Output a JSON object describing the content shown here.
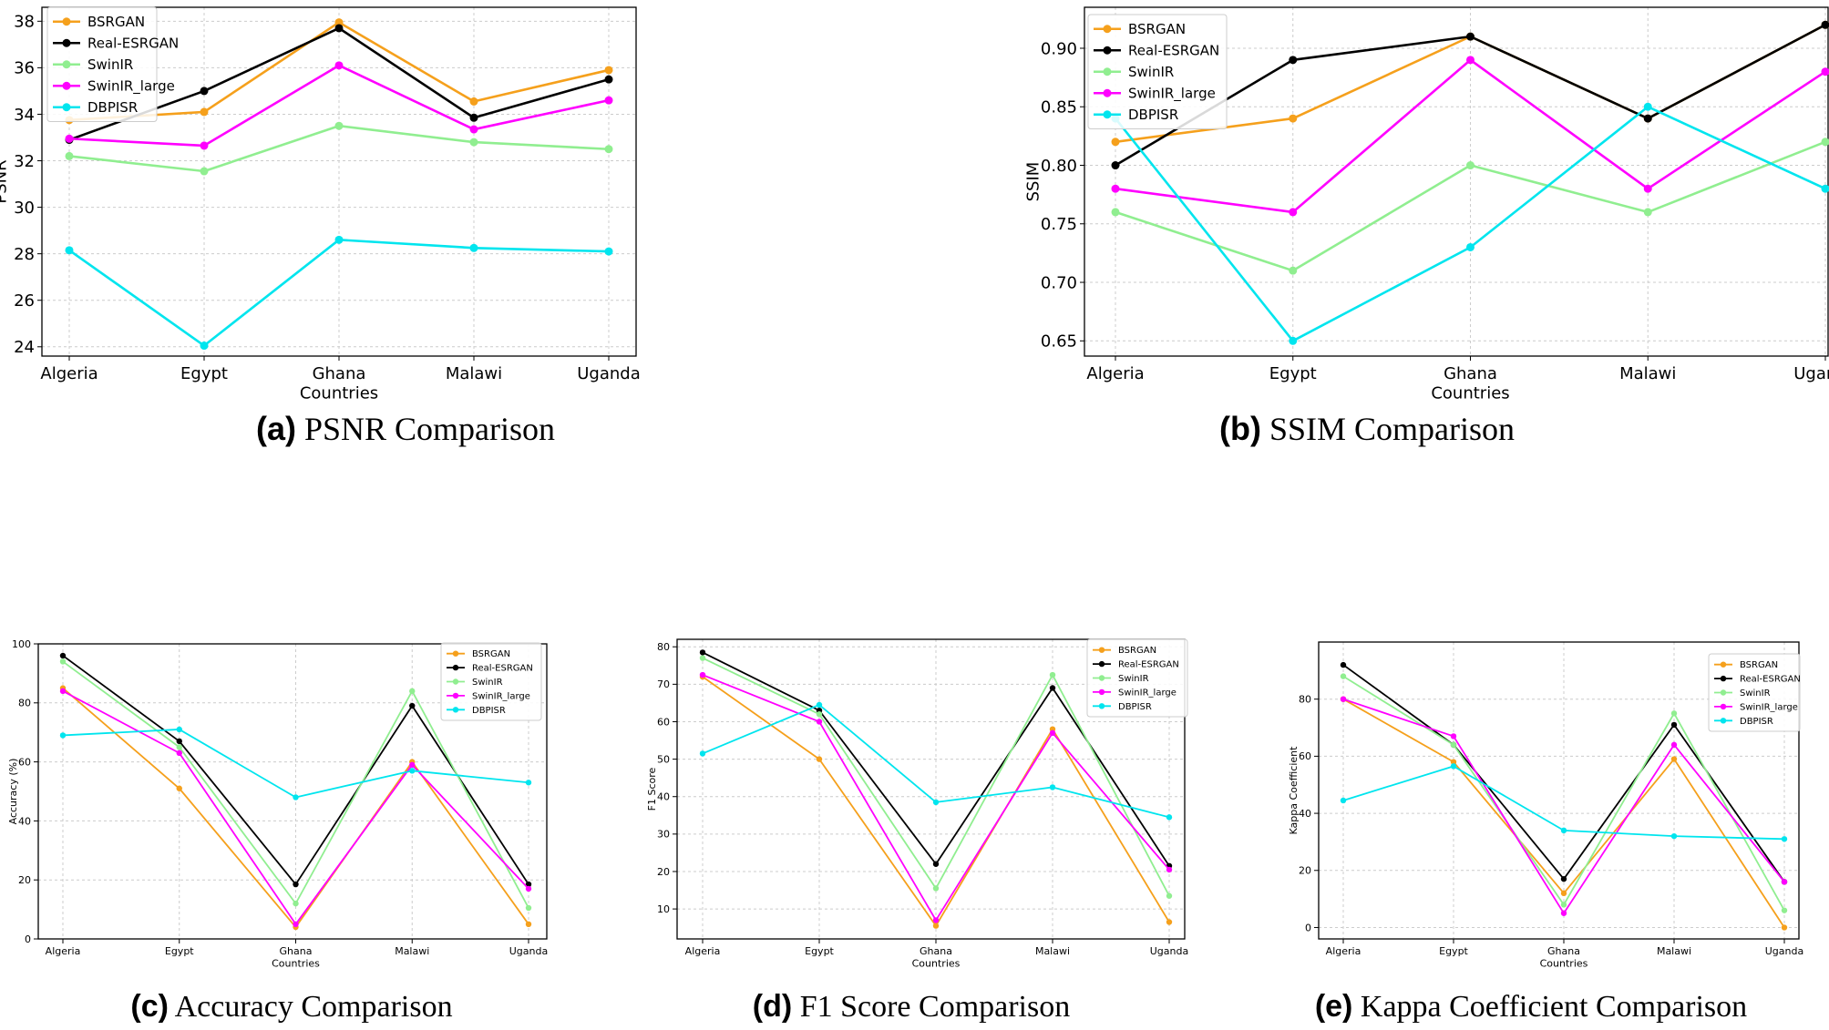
{
  "colors": {
    "BSRGAN": "#f5a01c",
    "Real-ESRGAN": "#000000",
    "SwinIR": "#90ee90",
    "SwinIR_large": "#ff00ff",
    "DBPISR": "#00e5ee"
  },
  "chart_data": [
    {
      "id": "psnr",
      "type": "line",
      "caption_letter": "(a)",
      "caption_text": " PSNR Comparison",
      "xlabel": "Countries",
      "ylabel": "PSNR",
      "categories": [
        "Algeria",
        "Egypt",
        "Ghana",
        "Malawi",
        "Uganda"
      ],
      "ylim": [
        23.6,
        38.6
      ],
      "yticks": [
        24,
        26,
        28,
        30,
        32,
        34,
        36,
        38
      ],
      "ytick_labels": [
        "24",
        "26",
        "28",
        "30",
        "32",
        "34",
        "36",
        "38"
      ],
      "grid": true,
      "legend": "top-left",
      "series": [
        {
          "name": "BSRGAN",
          "values": [
            33.75,
            34.1,
            37.95,
            34.55,
            35.9
          ]
        },
        {
          "name": "Real-ESRGAN",
          "values": [
            32.9,
            35.0,
            37.7,
            33.85,
            35.5
          ]
        },
        {
          "name": "SwinIR",
          "values": [
            32.2,
            31.55,
            33.5,
            32.8,
            32.5
          ]
        },
        {
          "name": "SwinIR_large",
          "values": [
            32.95,
            32.65,
            36.1,
            33.35,
            34.6
          ]
        },
        {
          "name": "DBPISR",
          "values": [
            28.15,
            24.05,
            28.6,
            28.25,
            28.1
          ]
        }
      ]
    },
    {
      "id": "ssim",
      "type": "line",
      "caption_letter": "(b)",
      "caption_text": " SSIM Comparison",
      "xlabel": "Countries",
      "ylabel": "SSIM",
      "categories": [
        "Algeria",
        "Egypt",
        "Ghana",
        "Malawi",
        "Uganda"
      ],
      "ylim": [
        0.637,
        0.935
      ],
      "yticks": [
        0.65,
        0.7,
        0.75,
        0.8,
        0.85,
        0.9
      ],
      "ytick_labels": [
        "0.65",
        "0.70",
        "0.75",
        "0.80",
        "0.85",
        "0.90"
      ],
      "grid": true,
      "legend": "top-left",
      "series": [
        {
          "name": "BSRGAN",
          "values": [
            0.82,
            0.84,
            0.91,
            0.84,
            0.92
          ]
        },
        {
          "name": "Real-ESRGAN",
          "values": [
            0.8,
            0.89,
            0.91,
            0.84,
            0.92
          ]
        },
        {
          "name": "SwinIR",
          "values": [
            0.76,
            0.71,
            0.8,
            0.76,
            0.82
          ]
        },
        {
          "name": "SwinIR_large",
          "values": [
            0.78,
            0.76,
            0.89,
            0.78,
            0.88
          ]
        },
        {
          "name": "DBPISR",
          "values": [
            0.84,
            0.65,
            0.73,
            0.85,
            0.78
          ]
        }
      ]
    },
    {
      "id": "accuracy",
      "type": "line",
      "caption_letter": "(c)",
      "caption_text": " Accuracy Comparison",
      "xlabel": "Countries",
      "ylabel": "Accuracy (%)",
      "categories": [
        "Algeria",
        "Egypt",
        "Ghana",
        "Malawi",
        "Uganda"
      ],
      "ylim": [
        0,
        100
      ],
      "yticks": [
        0,
        20,
        40,
        60,
        80,
        100
      ],
      "ytick_labels": [
        "0",
        "20",
        "40",
        "60",
        "80",
        "100"
      ],
      "grid": true,
      "legend": "top-right",
      "series": [
        {
          "name": "BSRGAN",
          "values": [
            85,
            51,
            4,
            60,
            5
          ]
        },
        {
          "name": "Real-ESRGAN",
          "values": [
            96,
            67,
            18.5,
            79,
            18.5
          ]
        },
        {
          "name": "SwinIR",
          "values": [
            94,
            65,
            12,
            84,
            10.5
          ]
        },
        {
          "name": "SwinIR_large",
          "values": [
            84,
            63,
            5,
            59,
            17
          ]
        },
        {
          "name": "DBPISR",
          "values": [
            69,
            71,
            48,
            57,
            53
          ]
        }
      ]
    },
    {
      "id": "f1",
      "type": "line",
      "caption_letter": "(d)",
      "caption_text": " F1 Score Comparison",
      "xlabel": "Countries",
      "ylabel": "F1 Score",
      "categories": [
        "Algeria",
        "Egypt",
        "Ghana",
        "Malawi",
        "Uganda"
      ],
      "ylim": [
        2,
        82
      ],
      "yticks": [
        10,
        20,
        30,
        40,
        50,
        60,
        70,
        80
      ],
      "ytick_labels": [
        "10",
        "20",
        "30",
        "40",
        "50",
        "60",
        "70",
        "80"
      ],
      "grid": true,
      "legend": "top-right",
      "series": [
        {
          "name": "BSRGAN",
          "values": [
            72,
            50,
            5.5,
            58,
            6.5
          ]
        },
        {
          "name": "Real-ESRGAN",
          "values": [
            78.5,
            63,
            22,
            69,
            21.5
          ]
        },
        {
          "name": "SwinIR",
          "values": [
            77,
            62,
            15.5,
            72.5,
            13.5
          ]
        },
        {
          "name": "SwinIR_large",
          "values": [
            72.5,
            60,
            7,
            57,
            20.5
          ]
        },
        {
          "name": "DBPISR",
          "values": [
            51.5,
            64.5,
            38.5,
            42.5,
            34.5
          ]
        }
      ]
    },
    {
      "id": "kappa",
      "type": "line",
      "caption_letter": "(e)",
      "caption_text": " Kappa Coefficient Comparison",
      "xlabel": "Countries",
      "ylabel": "Kappa Coefficient",
      "categories": [
        "Algeria",
        "Egypt",
        "Ghana",
        "Malawi",
        "Uganda"
      ],
      "ylim": [
        -4,
        100
      ],
      "yticks": [
        0,
        20,
        40,
        60,
        80
      ],
      "ytick_labels": [
        "0",
        "20",
        "40",
        "60",
        "80"
      ],
      "grid": true,
      "legend": "top-right",
      "series": [
        {
          "name": "BSRGAN",
          "values": [
            80,
            58,
            12,
            59,
            0
          ]
        },
        {
          "name": "Real-ESRGAN",
          "values": [
            92,
            64,
            17,
            71,
            16
          ]
        },
        {
          "name": "SwinIR",
          "values": [
            88,
            64,
            8,
            75,
            6
          ]
        },
        {
          "name": "SwinIR_large",
          "values": [
            80,
            67,
            5,
            64,
            16
          ]
        },
        {
          "name": "DBPISR",
          "values": [
            44.5,
            56.5,
            34,
            32,
            31
          ]
        }
      ]
    }
  ]
}
